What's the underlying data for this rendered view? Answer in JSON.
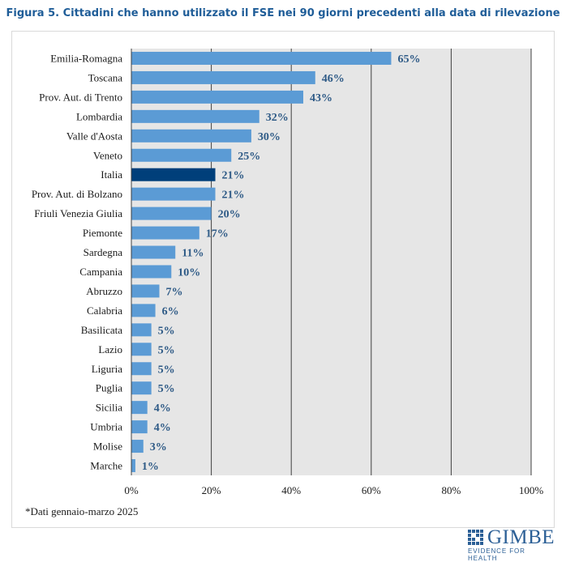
{
  "title": "Figura 5. Cittadini che hanno utilizzato il FSE nei 90 giorni precedenti alla data di rilevazione",
  "note": "*Dati gennaio-marzo 2025",
  "logo": {
    "name": "GIMBE",
    "tagline": "EVIDENCE FOR HEALTH"
  },
  "colors": {
    "bar": "#5b9bd5",
    "highlight": "#003f7a",
    "plot_bg": "#e6e6e6",
    "grid": "#404040",
    "value_text": "#2e5a86",
    "title": "#1f5d98"
  },
  "chart_data": {
    "type": "bar",
    "orientation": "horizontal",
    "categories": [
      "Emilia-Romagna",
      "Toscana",
      "Prov. Aut. di Trento",
      "Lombardia",
      "Valle d'Aosta",
      "Veneto",
      "Italia",
      "Prov. Aut. di Bolzano",
      "Friuli Venezia Giulia",
      "Piemonte",
      "Sardegna",
      "Campania",
      "Abruzzo",
      "Calabria",
      "Basilicata",
      "Lazio",
      "Liguria",
      "Puglia",
      "Sicilia",
      "Umbria",
      "Molise",
      "Marche"
    ],
    "values": [
      65,
      46,
      43,
      32,
      30,
      25,
      21,
      21,
      20,
      17,
      11,
      10,
      7,
      6,
      5,
      5,
      5,
      5,
      4,
      4,
      3,
      1
    ],
    "value_labels": [
      "65%",
      "46%",
      "43%",
      "32%",
      "30%",
      "25%",
      "21%",
      "21%",
      "20%",
      "17%",
      "11%",
      "10%",
      "7%",
      "6%",
      "5%",
      "5%",
      "5%",
      "5%",
      "4%",
      "4%",
      "3%",
      "1%"
    ],
    "highlight": "Italia",
    "xlim": [
      0,
      100
    ],
    "xticks": [
      0,
      20,
      40,
      60,
      80,
      100
    ],
    "xtick_labels": [
      "0%",
      "20%",
      "40%",
      "60%",
      "80%",
      "100%"
    ],
    "grid": true
  }
}
